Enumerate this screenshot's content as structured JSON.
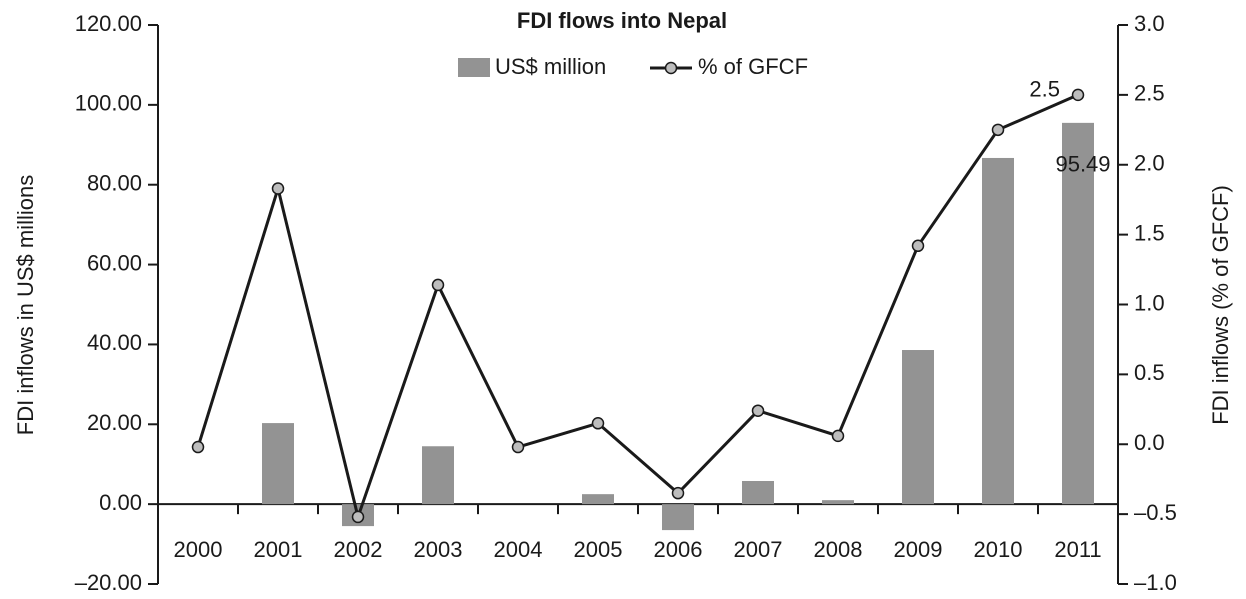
{
  "chart_data": {
    "type": "bar-line",
    "title": "FDI flows into Nepal",
    "y_label": "FDI inflows in US$ millions",
    "y2_label": "FDI inflows (% of GFCF)",
    "categories": [
      "2000",
      "2001",
      "2002",
      "2003",
      "2004",
      "2005",
      "2006",
      "2007",
      "2008",
      "2009",
      "2010",
      "2011"
    ],
    "series": [
      {
        "name": "US$ million",
        "type": "bar",
        "color": "#939393",
        "axis": "y",
        "values": [
          0,
          20.3,
          -5.5,
          14.5,
          0,
          2.5,
          -6.5,
          5.8,
          1.0,
          38.6,
          86.7,
          95.49
        ],
        "value_labels": [
          null,
          null,
          null,
          null,
          null,
          null,
          null,
          null,
          null,
          null,
          null,
          "95.49"
        ]
      },
      {
        "name": "% of GFCF",
        "type": "line",
        "color": "#1a1a1a",
        "marker_color": "#bdbdbd",
        "axis": "y2",
        "values": [
          -0.02,
          1.83,
          -0.52,
          1.14,
          -0.02,
          0.15,
          -0.35,
          0.24,
          0.06,
          1.42,
          2.25,
          2.5
        ],
        "value_labels": [
          null,
          null,
          null,
          null,
          null,
          null,
          null,
          null,
          null,
          null,
          null,
          "2.5"
        ]
      }
    ],
    "ylim": [
      -20,
      120
    ],
    "yticks": [
      {
        "value": -20,
        "label": "–20.00"
      },
      {
        "value": 0,
        "label": "0.00"
      },
      {
        "value": 20,
        "label": "20.00"
      },
      {
        "value": 40,
        "label": "40.00"
      },
      {
        "value": 60,
        "label": "60.00"
      },
      {
        "value": 80,
        "label": "80.00"
      },
      {
        "value": 100,
        "label": "100.00"
      },
      {
        "value": 120,
        "label": "120.00"
      }
    ],
    "y2lim": [
      -1,
      3
    ],
    "y2ticks": [
      {
        "value": -1,
        "label": "–1.0"
      },
      {
        "value": -0.5,
        "label": "–0.5"
      },
      {
        "value": 0,
        "label": "0.0"
      },
      {
        "value": 0.5,
        "label": "0.5"
      },
      {
        "value": 1,
        "label": "1.0"
      },
      {
        "value": 1.5,
        "label": "1.5"
      },
      {
        "value": 2,
        "label": "2.0"
      },
      {
        "value": 2.5,
        "label": "2.5"
      },
      {
        "value": 3,
        "label": "3.0"
      }
    ],
    "grid": false
  }
}
